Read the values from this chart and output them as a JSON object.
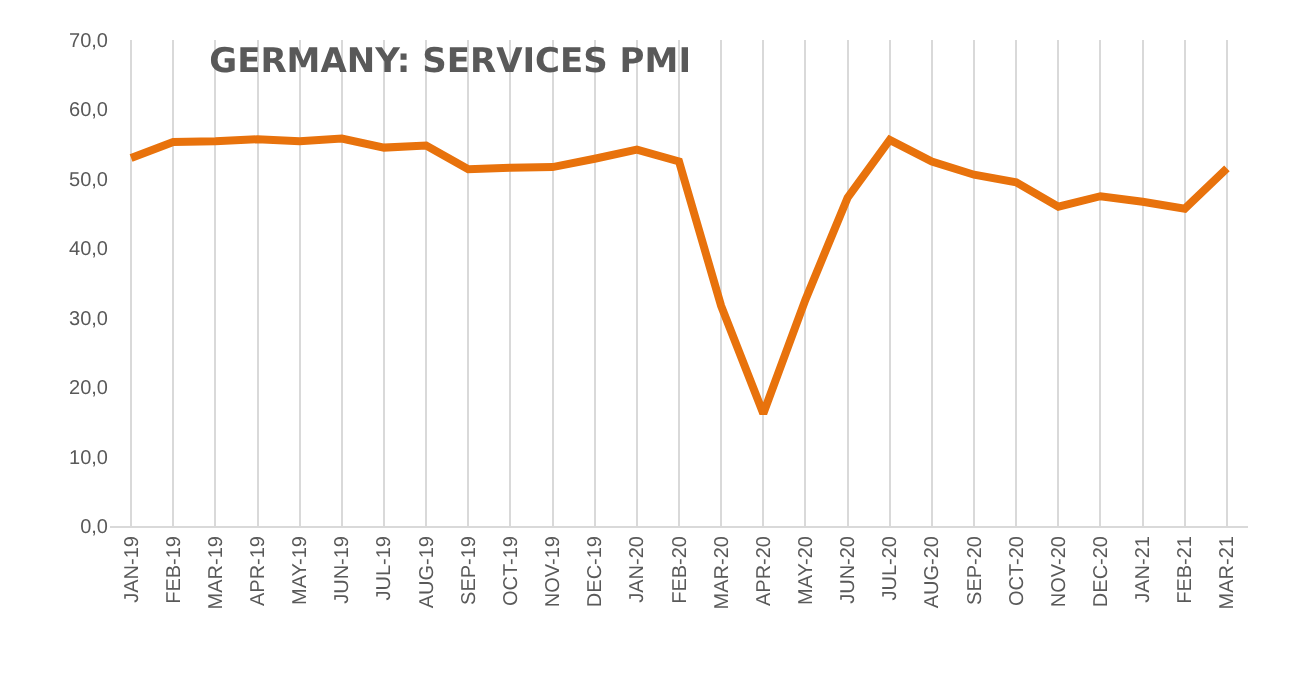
{
  "chart_data": {
    "type": "line",
    "title": "GERMANY: SERVICES PMI",
    "categories": [
      "JAN-19",
      "FEB-19",
      "MAR-19",
      "APR-19",
      "MAY-19",
      "JUN-19",
      "JUL-19",
      "AUG-19",
      "SEP-19",
      "OCT-19",
      "NOV-19",
      "DEC-19",
      "JAN-20",
      "FEB-20",
      "MAR-20",
      "APR-20",
      "MAY-20",
      "JUN-20",
      "JUL-20",
      "AUG-20",
      "SEP-20",
      "OCT-20",
      "NOV-20",
      "DEC-20",
      "JAN-21",
      "FEB-21",
      "MAR-21"
    ],
    "series": [
      {
        "color": "#e8720c",
        "values": [
          53.0,
          55.3,
          55.4,
          55.7,
          55.4,
          55.8,
          54.5,
          54.8,
          51.4,
          51.6,
          51.7,
          52.9,
          54.2,
          52.5,
          31.7,
          16.2,
          32.6,
          47.3,
          55.6,
          52.5,
          50.6,
          49.5,
          46.0,
          47.5,
          46.7,
          45.7,
          51.5
        ]
      }
    ],
    "ylim": [
      0,
      70
    ],
    "yticks": [
      {
        "value": 0,
        "label": "0,0"
      },
      {
        "value": 10,
        "label": "10,0"
      },
      {
        "value": 20,
        "label": "20,0"
      },
      {
        "value": 30,
        "label": "30,0"
      },
      {
        "value": 40,
        "label": "40,0"
      },
      {
        "value": 50,
        "label": "50,0"
      },
      {
        "value": 60,
        "label": "60,0"
      },
      {
        "value": 70,
        "label": "70,0"
      }
    ],
    "grid": "x",
    "marker": "none",
    "line_style": "solid"
  }
}
